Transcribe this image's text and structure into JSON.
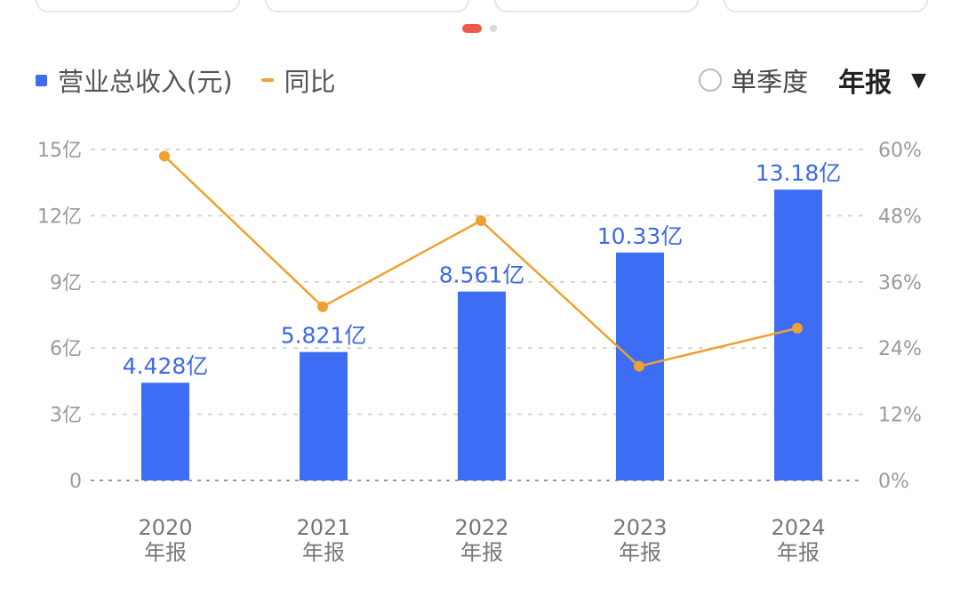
{
  "legend": {
    "bar_label": "营业总收入(元)",
    "line_label": "同比"
  },
  "controls": {
    "quarter_label": "单季度",
    "period_label": "年报",
    "caret_glyph": "▼"
  },
  "colors": {
    "bar": "#3d6cf5",
    "line": "#f0a030",
    "label": "#3e68e6",
    "pager_active": "#f05a4a"
  },
  "chart_data": {
    "type": "bar",
    "categories": [
      "2020年报",
      "2021年报",
      "2022年报",
      "2023年报",
      "2024年报"
    ],
    "x_year": [
      "2020",
      "2021",
      "2022",
      "2023",
      "2024"
    ],
    "x_sub": [
      "年报",
      "年报",
      "年报",
      "年报",
      "年报"
    ],
    "series": [
      {
        "name": "营业总收入(元)",
        "axis": "left",
        "values": [
          4.428,
          5.821,
          8.561,
          10.33,
          13.18
        ],
        "labels": [
          "4.428亿",
          "5.821亿",
          "8.561亿",
          "10.33亿",
          "13.18亿"
        ]
      },
      {
        "name": "同比",
        "type": "line",
        "axis": "right",
        "values": [
          58.8,
          31.5,
          47.1,
          20.7,
          27.6
        ]
      }
    ],
    "y_left": {
      "ticks": [
        0,
        3,
        6,
        9,
        12,
        15
      ],
      "tick_labels": [
        "0",
        "3亿",
        "6亿",
        "9亿",
        "12亿",
        "15亿"
      ],
      "ylim": [
        0,
        15
      ]
    },
    "y_right": {
      "ticks": [
        0,
        12,
        24,
        36,
        48,
        60
      ],
      "tick_labels": [
        "0%",
        "12%",
        "24%",
        "36%",
        "48%",
        "60%"
      ],
      "ylim": [
        0,
        60
      ]
    },
    "grid": true,
    "legend_position": "top-left"
  }
}
